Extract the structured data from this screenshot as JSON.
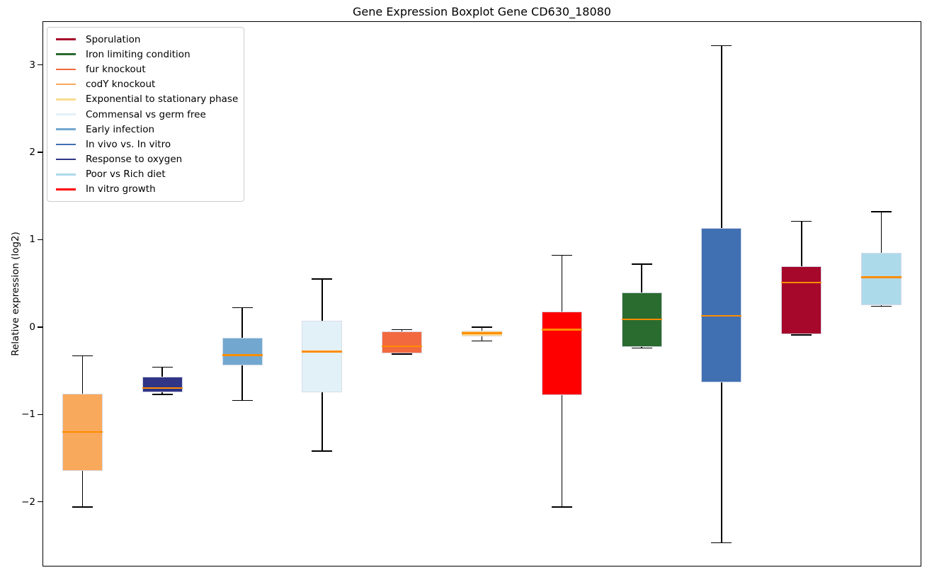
{
  "figure": {
    "title": "Gene Expression Boxplot Gene CD630_18080",
    "ylabel": "Relative expression (log2)"
  },
  "chart_data": {
    "type": "boxplot",
    "title": "Gene Expression Boxplot Gene CD630_18080",
    "xlabel": "",
    "ylabel": "Relative expression (log2)",
    "ylim": [
      -2.74,
      3.5
    ],
    "grid": false,
    "x_tick_labels": [],
    "y_ticks": [
      {
        "value": 3,
        "label": "3"
      },
      {
        "value": 2,
        "label": "2"
      },
      {
        "value": 1,
        "label": "1"
      },
      {
        "value": 0,
        "label": "0"
      },
      {
        "value": -1,
        "label": "−1"
      },
      {
        "value": -2,
        "label": "−2"
      }
    ],
    "median_color": "#ff8c00",
    "legend_position": "upper left",
    "legend": [
      {
        "label": "Sporulation",
        "color": "#a5082b"
      },
      {
        "label": "Iron limiting condition",
        "color": "#2a6b2f"
      },
      {
        "label": "fur knockout",
        "color": "#f3693f"
      },
      {
        "label": "codY knockout",
        "color": "#f9a95c"
      },
      {
        "label": "Exponential to stationary phase",
        "color": "#fadc8d"
      },
      {
        "label": "Commensal vs germ free",
        "color": "#e2f1f8"
      },
      {
        "label": "Early infection",
        "color": "#72a8cf"
      },
      {
        "label": "In vivo vs. In vitro",
        "color": "#4070b2"
      },
      {
        "label": "Response to oxygen",
        "color": "#303585"
      },
      {
        "label": "Poor vs Rich diet",
        "color": "#addaeb"
      },
      {
        "label": "In vitro growth",
        "color": "#ff0000"
      }
    ],
    "boxes": [
      {
        "label": "codY knockout",
        "color": "#f9a95c",
        "whisker_low": -2.06,
        "q1": -1.65,
        "median": -1.2,
        "q3": -0.76,
        "whisker_high": -0.33
      },
      {
        "label": "Response to oxygen",
        "color": "#303585",
        "whisker_low": -0.77,
        "q1": -0.75,
        "median": -0.7,
        "q3": -0.57,
        "whisker_high": -0.46
      },
      {
        "label": "Early infection",
        "color": "#72a8cf",
        "whisker_low": -0.84,
        "q1": -0.44,
        "median": -0.32,
        "q3": -0.12,
        "whisker_high": 0.22
      },
      {
        "label": "Commensal vs germ free",
        "color": "#e2f1f8",
        "whisker_low": -1.42,
        "q1": -0.75,
        "median": -0.28,
        "q3": 0.07,
        "whisker_high": 0.55
      },
      {
        "label": "fur knockout",
        "color": "#f3693f",
        "whisker_low": -0.31,
        "q1": -0.3,
        "median": -0.22,
        "q3": -0.05,
        "whisker_high": -0.03
      },
      {
        "label": "Exponential to stationary phase",
        "color": "#fadc8d",
        "whisker_low": -0.16,
        "q1": -0.11,
        "median": -0.07,
        "q3": -0.04,
        "whisker_high": 0.0
      },
      {
        "label": "In vitro growth",
        "color": "#ff0000",
        "whisker_low": -2.06,
        "q1": -0.78,
        "median": -0.03,
        "q3": 0.18,
        "whisker_high": 0.82
      },
      {
        "label": "Iron limiting condition",
        "color": "#2a6b2f",
        "whisker_low": -0.24,
        "q1": -0.23,
        "median": 0.09,
        "q3": 0.4,
        "whisker_high": 0.72
      },
      {
        "label": "In vivo vs. In vitro",
        "color": "#4070b2",
        "whisker_low": -2.47,
        "q1": -0.63,
        "median": 0.13,
        "q3": 1.13,
        "whisker_high": 3.22
      },
      {
        "label": "Sporulation",
        "color": "#a5082b",
        "whisker_low": -0.09,
        "q1": -0.08,
        "median": 0.51,
        "q3": 0.7,
        "whisker_high": 1.21
      },
      {
        "label": "Poor vs Rich diet",
        "color": "#addaeb",
        "whisker_low": 0.24,
        "q1": 0.25,
        "median": 0.57,
        "q3": 0.85,
        "whisker_high": 1.32
      }
    ]
  }
}
